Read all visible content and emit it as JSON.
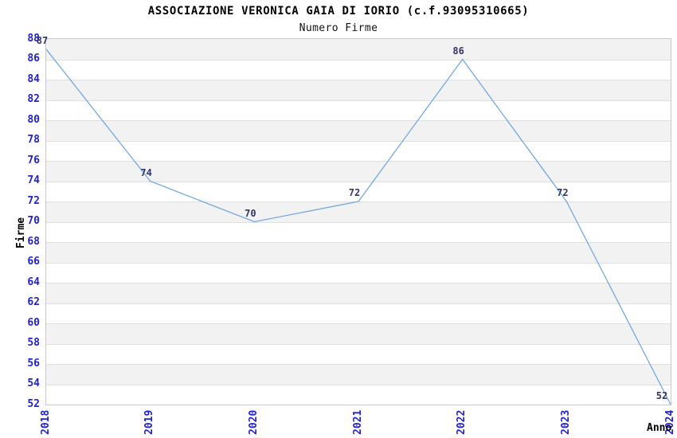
{
  "title": "ASSOCIAZIONE VERONICA GAIA DI IORIO (c.f.93095310665)",
  "subtitle": "Numero Firme",
  "chart_data": {
    "type": "line",
    "title": "ASSOCIAZIONE VERONICA GAIA DI IORIO (c.f.93095310665)",
    "subtitle": "Numero Firme",
    "x": [
      "2018",
      "2019",
      "2020",
      "2021",
      "2022",
      "2023",
      "2024"
    ],
    "series": [
      {
        "name": "Numero Firme",
        "values": [
          87,
          74,
          70,
          72,
          86,
          72,
          52
        ]
      }
    ],
    "point_labels": [
      "87",
      "74",
      "70",
      "72",
      "86",
      "72",
      "52"
    ],
    "xlabel": "Anno",
    "ylabel": "Firme",
    "ylim": [
      52,
      88
    ],
    "ytick_step": 2,
    "yticks": [
      52,
      54,
      56,
      58,
      60,
      62,
      64,
      66,
      68,
      70,
      72,
      74,
      76,
      78,
      80,
      82,
      84,
      86,
      88
    ],
    "grid": "horizontal-alternating-bands",
    "legend": "none",
    "colors": {
      "line": "#74a7de",
      "axis_tick_text": "#2222cc",
      "point_label_text": "#333366",
      "band_fill": "#f2f2f2",
      "grid_line": "#e0e0e0",
      "plot_border": "#c9c9c9",
      "title_text": "#000000"
    }
  }
}
